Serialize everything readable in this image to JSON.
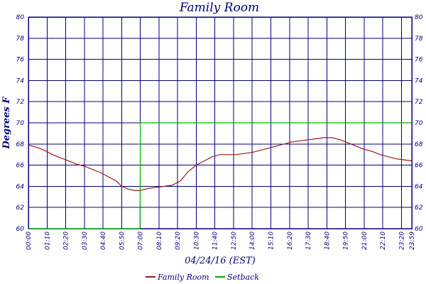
{
  "chart_data": {
    "type": "line",
    "title": "Family Room",
    "xlabel": "04/24/16 (EST)",
    "ylabel": "Degrees F",
    "ylim": [
      60,
      80
    ],
    "yticks": [
      60,
      62,
      64,
      66,
      68,
      70,
      72,
      74,
      76,
      78,
      80
    ],
    "xticks": [
      "00:00",
      "01:10",
      "02:20",
      "03:30",
      "04:40",
      "05:50",
      "07:00",
      "08:10",
      "09:20",
      "10:30",
      "11:40",
      "12:50",
      "14:00",
      "15:10",
      "16:20",
      "17:30",
      "18:40",
      "19:50",
      "21:00",
      "22:10",
      "23:20",
      "23:59"
    ],
    "grid": true,
    "legend_position": "bottom",
    "series": [
      {
        "name": "Family Room",
        "color": "#a01818",
        "x": [
          "00:00",
          "00:30",
          "01:00",
          "01:30",
          "02:00",
          "02:30",
          "03:00",
          "03:30",
          "04:00",
          "04:30",
          "05:00",
          "05:30",
          "05:50",
          "06:20",
          "06:40",
          "07:00",
          "07:30",
          "08:00",
          "08:30",
          "09:00",
          "09:30",
          "10:00",
          "10:30",
          "11:00",
          "11:30",
          "12:00",
          "12:30",
          "13:00",
          "13:30",
          "14:00",
          "14:30",
          "15:00",
          "15:30",
          "16:00",
          "16:30",
          "17:00",
          "17:30",
          "18:00",
          "18:30",
          "19:00",
          "19:30",
          "20:00",
          "20:30",
          "21:00",
          "21:30",
          "22:00",
          "22:30",
          "23:00",
          "23:30",
          "23:59"
        ],
        "values": [
          67.9,
          67.7,
          67.4,
          67.0,
          66.7,
          66.4,
          66.1,
          65.9,
          65.6,
          65.3,
          64.9,
          64.5,
          64.0,
          63.7,
          63.6,
          63.6,
          63.8,
          63.9,
          64.0,
          64.1,
          64.5,
          65.4,
          66.0,
          66.4,
          66.8,
          67.0,
          67.0,
          67.0,
          67.1,
          67.2,
          67.4,
          67.6,
          67.8,
          68.0,
          68.2,
          68.3,
          68.4,
          68.5,
          68.6,
          68.6,
          68.4,
          68.1,
          67.8,
          67.5,
          67.3,
          67.0,
          66.8,
          66.6,
          66.5,
          66.4
        ]
      },
      {
        "name": "Setback",
        "color": "#00b000",
        "x": [
          "00:00",
          "06:59",
          "07:00",
          "07:00",
          "23:59"
        ],
        "values": [
          60,
          60,
          67.5,
          70,
          70
        ]
      }
    ]
  }
}
